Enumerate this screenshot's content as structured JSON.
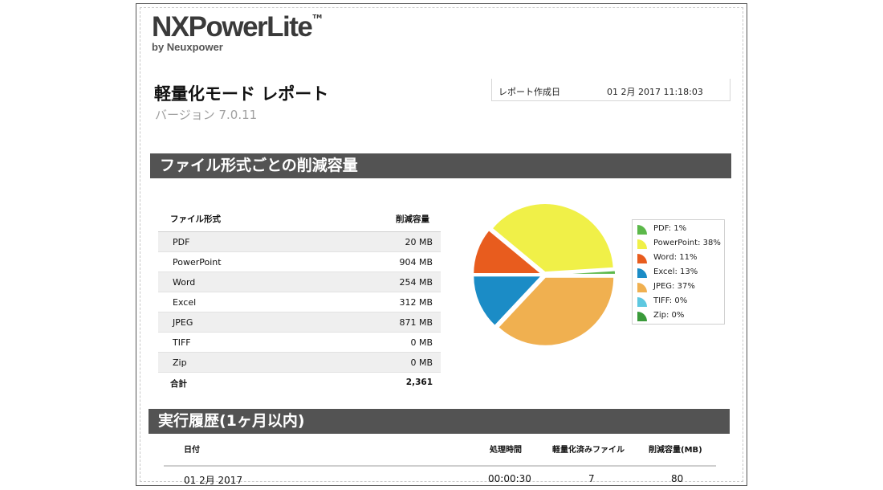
{
  "logo": {
    "brand": "NXPowerLite",
    "tm": "TM",
    "byline": "by Neuxpower"
  },
  "report": {
    "title": "軽量化モード レポート",
    "version": "バージョン  7.0.11"
  },
  "meta": {
    "created_label": "レポート作成日",
    "created_value": "01 2月 2017 11:18:03"
  },
  "sections": {
    "by_type_title": "ファイル形式ごとの削減容量",
    "history_title": "実行履歴(1ヶ月以内)"
  },
  "file_table": {
    "headers": {
      "type": "ファイル形式",
      "saved": "削減容量"
    },
    "rows": [
      {
        "type": "PDF",
        "saved": "20 MB"
      },
      {
        "type": "PowerPoint",
        "saved": "904 MB"
      },
      {
        "type": "Word",
        "saved": "254 MB"
      },
      {
        "type": "Excel",
        "saved": "312 MB"
      },
      {
        "type": "JPEG",
        "saved": "871 MB"
      },
      {
        "type": "TIFF",
        "saved": "0 MB"
      },
      {
        "type": "Zip",
        "saved": "0 MB"
      }
    ],
    "total": {
      "label": "合計",
      "value": "2,361"
    }
  },
  "chart_data": {
    "type": "pie",
    "title": "",
    "legend_position": "right",
    "series": [
      {
        "name": "PDF",
        "label": "PDF: 1%",
        "value": 1,
        "color": "#5cb84a"
      },
      {
        "name": "PowerPoint",
        "label": "PowerPoint: 38%",
        "value": 38,
        "color": "#f0f048"
      },
      {
        "name": "Word",
        "label": "Word: 11%",
        "value": 11,
        "color": "#e85c1e"
      },
      {
        "name": "Excel",
        "label": "Excel: 13%",
        "value": 13,
        "color": "#1b8cc6"
      },
      {
        "name": "JPEG",
        "label": "JPEG: 37%",
        "value": 37,
        "color": "#f0b050"
      },
      {
        "name": "TIFF",
        "label": "TIFF: 0%",
        "value": 0,
        "color": "#5ec8e0"
      },
      {
        "name": "Zip",
        "label": "Zip: 0%",
        "value": 0,
        "color": "#3a9a3a"
      }
    ]
  },
  "history_table": {
    "headers": {
      "date": "日付",
      "time": "処理時間",
      "files": "軽量化済みファイル",
      "saved": "削減容量(MB)"
    },
    "rows": [
      {
        "date": "01 2月 2017",
        "time": "00:00:30",
        "files": "7",
        "saved": "80"
      }
    ]
  }
}
